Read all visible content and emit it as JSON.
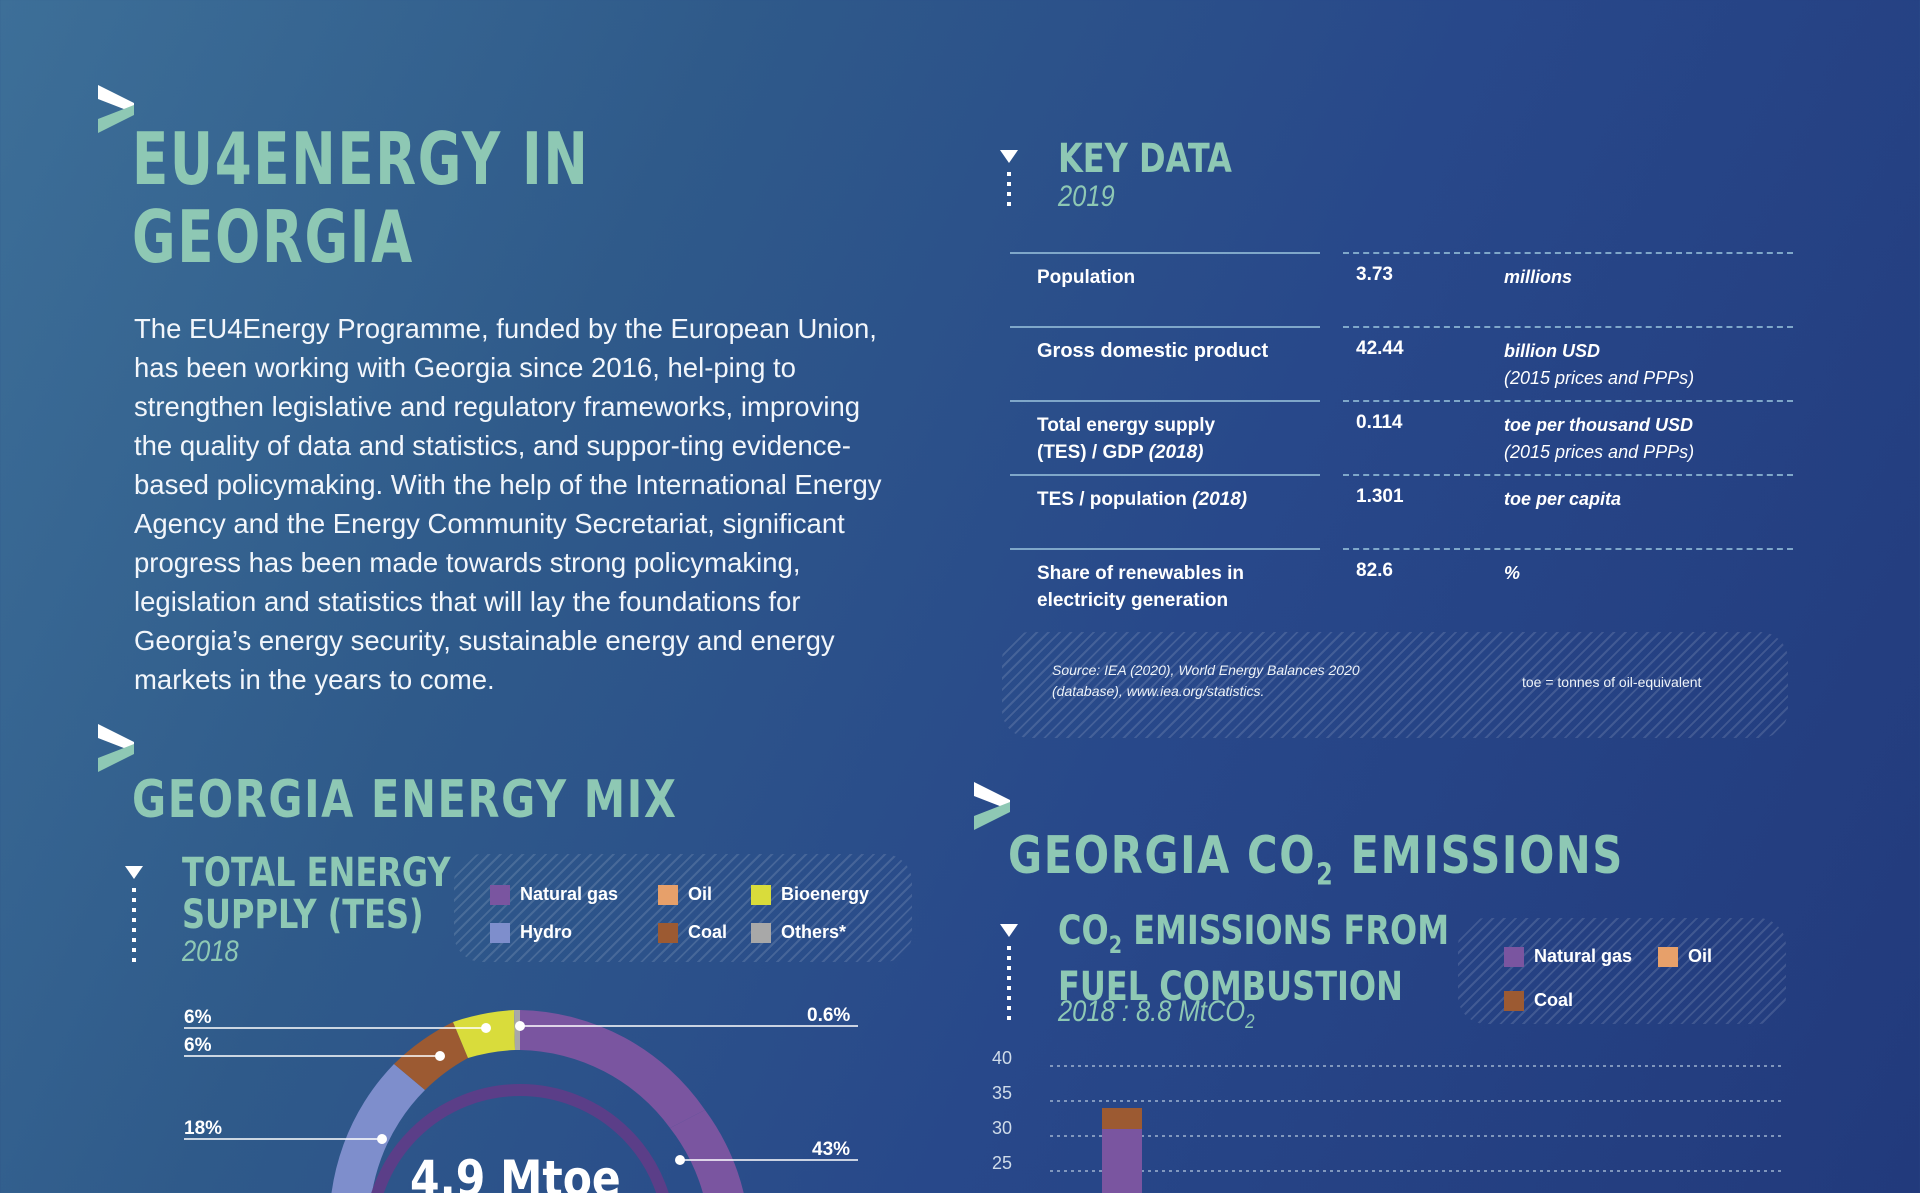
{
  "header": {
    "title_line1": "EU4ENERGY IN",
    "title_line2": "GEORGIA"
  },
  "intro": {
    "text": "The EU4Energy Programme, funded by the European Union, has been working with Georgia since 2016, hel-ping to strengthen legislative and regulatory frameworks, improving the quality of data and statistics, and suppor-ting evidence-based policymaking. With the help of the International Energy Agency and the Energy Community Secretariat, significant progress has been made towards strong policymaking, legislation and statistics that will lay the foundations for Georgia’s energy security, sustainable energy and energy markets in the years to come."
  },
  "key_data": {
    "title": "KEY DATA",
    "year": "2019",
    "rows": [
      {
        "label": "Population",
        "label_italic": "",
        "value": "3.73",
        "unit": "millions",
        "unit_note": ""
      },
      {
        "label": "Gross domestic product",
        "label_italic": "",
        "value": "42.44",
        "unit": "billion USD",
        "unit_note": "(2015 prices and PPPs)"
      },
      {
        "label": "Total energy supply (TES) / GDP",
        "label_italic": "(2018)",
        "value": "0.114",
        "unit": "toe per thousand USD",
        "unit_note": "(2015 prices and PPPs)"
      },
      {
        "label": "TES / population",
        "label_italic": "(2018)",
        "value": "1.301",
        "unit": "toe per capita",
        "unit_note": ""
      },
      {
        "label": "Share of renewables in electricity generation",
        "label_italic": "",
        "value": "82.6",
        "unit": "%",
        "unit_note": ""
      }
    ],
    "source": "Source: IEA (2020), World Energy Balances 2020 (database), www.iea.org/statistics.",
    "footnote": "toe = tonnes of oil-equivalent"
  },
  "energy_mix": {
    "title": "GEORGIA ENERGY MIX",
    "subtitle_line1": "TOTAL ENERGY",
    "subtitle_line2": "SUPPLY (TES)",
    "year": "2018",
    "legend": [
      {
        "label": "Natural gas",
        "color": "#7a55a0"
      },
      {
        "label": "Oil",
        "color": "#e7a06a"
      },
      {
        "label": "Bioenergy",
        "color": "#d9dc3b"
      },
      {
        "label": "Hydro",
        "color": "#7e8ecc"
      },
      {
        "label": "Coal",
        "color": "#9c5a32"
      },
      {
        "label": "Others*",
        "color": "#a8a8a8"
      }
    ],
    "center_label": "4.9 Mtoe",
    "chart_data": {
      "type": "pie",
      "categories": [
        "Natural gas",
        "Hydro",
        "Coal",
        "Bioenergy",
        "Others*",
        "Oil"
      ],
      "labels_shown": [
        "43%",
        "18%",
        "6%",
        "6%",
        "0.6%"
      ],
      "title": "TOTAL ENERGY SUPPLY (TES) 2018"
    }
  },
  "co2": {
    "title_prefix": "GEORGIA CO",
    "title_sub": "2",
    "title_suffix": " EMISSIONS",
    "subtitle_line1_prefix": "CO",
    "subtitle_line1_sub": "2",
    "subtitle_line1_suffix": " EMISSIONS FROM",
    "subtitle_line2": "FUEL COMBUSTION",
    "year_text": "2018 : 8.8 MtCO",
    "year_sub": "2",
    "legend": [
      {
        "label": "Natural gas",
        "color": "#7a55a0"
      },
      {
        "label": "Oil",
        "color": "#e7a06a"
      },
      {
        "label": "Coal",
        "color": "#9c5a32"
      }
    ],
    "chart_data": {
      "type": "bar",
      "y_ticks": [
        "40",
        "35",
        "30",
        "25"
      ],
      "ylim": [
        25,
        40
      ],
      "series": [
        {
          "name": "Natural gas",
          "values": [
            31
          ]
        },
        {
          "name": "Coal",
          "values": [
            34
          ]
        }
      ],
      "grid": true
    }
  }
}
